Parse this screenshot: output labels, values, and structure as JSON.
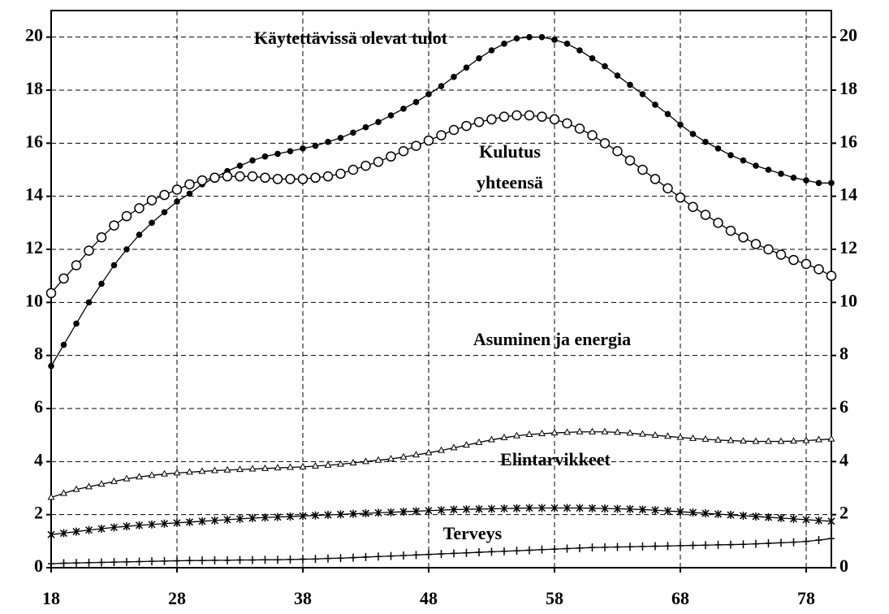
{
  "chart_data": {
    "type": "line",
    "x": [
      18,
      19,
      20,
      21,
      22,
      23,
      24,
      25,
      26,
      27,
      28,
      29,
      30,
      31,
      32,
      33,
      34,
      35,
      36,
      37,
      38,
      39,
      40,
      41,
      42,
      43,
      44,
      45,
      46,
      47,
      48,
      49,
      50,
      51,
      52,
      53,
      54,
      55,
      56,
      57,
      58,
      59,
      60,
      61,
      62,
      63,
      64,
      65,
      66,
      67,
      68,
      69,
      70,
      71,
      72,
      73,
      74,
      75,
      76,
      77,
      78,
      79,
      80
    ],
    "xlim": [
      18,
      80
    ],
    "xticks": [
      18,
      28,
      38,
      48,
      58,
      68,
      78
    ],
    "ylim": [
      0,
      21
    ],
    "yticks": [
      0,
      2,
      4,
      6,
      8,
      10,
      12,
      14,
      16,
      18,
      20
    ],
    "y2lim": [
      0,
      21
    ],
    "y2ticks": [
      0,
      2,
      4,
      6,
      8,
      10,
      12,
      14,
      16,
      18,
      20
    ],
    "grid": true,
    "series": [
      {
        "name": "Käytettävissä olevat tulot",
        "color": "#000000",
        "marker": "filled-circle",
        "values": [
          7.6,
          8.4,
          9.2,
          10.0,
          10.7,
          11.4,
          12.0,
          12.55,
          13.0,
          13.4,
          13.8,
          14.1,
          14.45,
          14.7,
          14.95,
          15.15,
          15.35,
          15.5,
          15.6,
          15.7,
          15.8,
          15.9,
          16.05,
          16.2,
          16.4,
          16.6,
          16.8,
          17.05,
          17.3,
          17.55,
          17.85,
          18.15,
          18.5,
          18.85,
          19.2,
          19.5,
          19.75,
          19.95,
          20.0,
          20.0,
          19.9,
          19.75,
          19.5,
          19.2,
          18.9,
          18.55,
          18.2,
          17.85,
          17.45,
          17.1,
          16.7,
          16.35,
          16.05,
          15.8,
          15.55,
          15.35,
          15.15,
          15.0,
          14.85,
          14.7,
          14.6,
          14.5,
          14.5
        ]
      },
      {
        "name": "Kulutus yhteensä",
        "color": "#000000",
        "marker": "open-circle",
        "values": [
          10.35,
          10.9,
          11.4,
          11.95,
          12.45,
          12.9,
          13.25,
          13.55,
          13.85,
          14.05,
          14.25,
          14.45,
          14.6,
          14.7,
          14.75,
          14.75,
          14.75,
          14.7,
          14.65,
          14.65,
          14.65,
          14.7,
          14.75,
          14.85,
          15.0,
          15.15,
          15.3,
          15.5,
          15.7,
          15.9,
          16.1,
          16.3,
          16.5,
          16.65,
          16.8,
          16.9,
          17.0,
          17.05,
          17.05,
          17.0,
          16.9,
          16.75,
          16.55,
          16.3,
          16.0,
          15.7,
          15.35,
          15.0,
          14.65,
          14.3,
          13.95,
          13.6,
          13.3,
          13.0,
          12.7,
          12.45,
          12.2,
          12.0,
          11.8,
          11.6,
          11.45,
          11.25,
          11.0
        ]
      },
      {
        "name": "Asuminen ja energia",
        "color": "#000000",
        "marker": "triangle",
        "values": [
          2.65,
          2.8,
          2.95,
          3.05,
          3.15,
          3.25,
          3.35,
          3.42,
          3.48,
          3.53,
          3.57,
          3.6,
          3.63,
          3.66,
          3.68,
          3.7,
          3.72,
          3.74,
          3.76,
          3.78,
          3.8,
          3.83,
          3.86,
          3.9,
          3.95,
          4.0,
          4.05,
          4.1,
          4.17,
          4.25,
          4.33,
          4.42,
          4.52,
          4.62,
          4.72,
          4.82,
          4.9,
          4.97,
          5.02,
          5.05,
          5.08,
          5.1,
          5.12,
          5.12,
          5.12,
          5.1,
          5.07,
          5.03,
          4.99,
          4.95,
          4.91,
          4.87,
          4.84,
          4.81,
          4.79,
          4.77,
          4.76,
          4.76,
          4.76,
          4.77,
          4.79,
          4.82,
          4.85
        ]
      },
      {
        "name": "Elintarvikkeet",
        "color": "#000000",
        "marker": "star",
        "values": [
          1.25,
          1.3,
          1.36,
          1.42,
          1.47,
          1.52,
          1.56,
          1.6,
          1.63,
          1.66,
          1.69,
          1.72,
          1.75,
          1.78,
          1.81,
          1.84,
          1.87,
          1.89,
          1.91,
          1.93,
          1.95,
          1.97,
          1.99,
          2.01,
          2.03,
          2.05,
          2.07,
          2.09,
          2.11,
          2.13,
          2.15,
          2.17,
          2.19,
          2.2,
          2.21,
          2.22,
          2.23,
          2.24,
          2.25,
          2.25,
          2.25,
          2.25,
          2.25,
          2.24,
          2.23,
          2.22,
          2.21,
          2.19,
          2.17,
          2.14,
          2.11,
          2.08,
          2.05,
          2.02,
          1.99,
          1.96,
          1.93,
          1.9,
          1.87,
          1.84,
          1.81,
          1.78,
          1.75
        ]
      },
      {
        "name": "Terveys",
        "color": "#000000",
        "marker": "plus",
        "values": [
          0.15,
          0.17,
          0.18,
          0.19,
          0.2,
          0.21,
          0.22,
          0.23,
          0.24,
          0.25,
          0.26,
          0.27,
          0.27,
          0.28,
          0.28,
          0.29,
          0.29,
          0.3,
          0.3,
          0.31,
          0.32,
          0.33,
          0.35,
          0.36,
          0.38,
          0.4,
          0.42,
          0.44,
          0.46,
          0.48,
          0.5,
          0.52,
          0.54,
          0.56,
          0.58,
          0.6,
          0.62,
          0.64,
          0.66,
          0.68,
          0.7,
          0.72,
          0.74,
          0.76,
          0.77,
          0.78,
          0.79,
          0.8,
          0.81,
          0.82,
          0.83,
          0.84,
          0.85,
          0.86,
          0.87,
          0.88,
          0.9,
          0.92,
          0.94,
          0.96,
          0.99,
          1.04,
          1.1
        ]
      }
    ]
  }
}
